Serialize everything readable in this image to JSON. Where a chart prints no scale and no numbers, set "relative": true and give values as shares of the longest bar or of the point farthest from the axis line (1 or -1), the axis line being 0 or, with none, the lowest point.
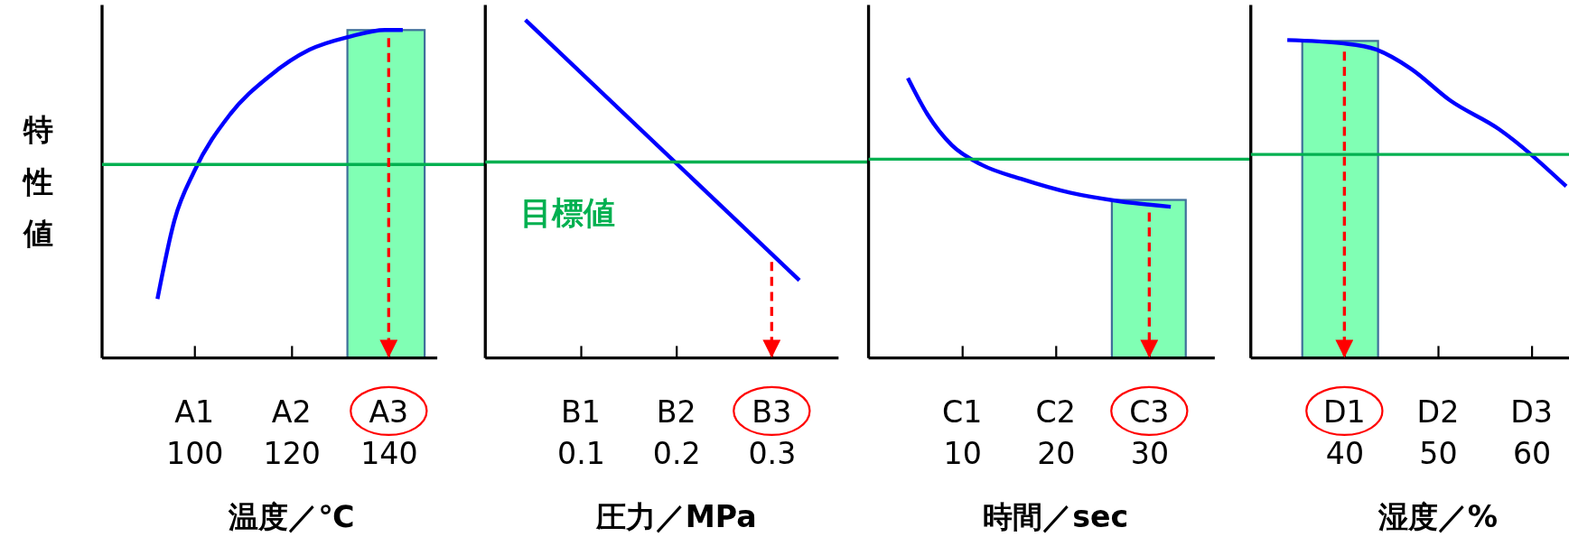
{
  "chart_data": [
    {
      "type": "line",
      "relative": true,
      "xlabel": "温度／℃",
      "ylabel": "特性値",
      "xlim": [
        81,
        150
      ],
      "xticks": [
        100,
        120,
        140
      ],
      "tick_labels": "x",
      "series": [
        {
          "color": "#0000ff",
          "x": [
            92.4,
            95.9,
            100,
            107.2,
            115.5,
            123.7,
            132,
            139.2,
            142.9
          ],
          "values": [
            0.18,
            0.42,
            0.57,
            0.74,
            0.86,
            0.94,
            0.98,
            1.0,
            1.0
          ]
        }
      ],
      "bands": [
        {
          "axis": "x",
          "from": 131.5,
          "to": 147.4,
          "color": "#80ffb4"
        }
      ],
      "ref_lines": [
        {
          "axis": "y",
          "value": 0.59,
          "label": null,
          "color": "#00b050"
        },
        {
          "axis": "x",
          "value": 140,
          "label": null,
          "color": "#ff0000",
          "line_style": "dashed"
        }
      ],
      "annotations": [
        "A1",
        "A2",
        "A3"
      ]
    },
    {
      "type": "line",
      "relative": true,
      "xlabel": "圧力／MPa",
      "xlim": [
        0,
        0.37
      ],
      "xticks": [
        0.1,
        0.2,
        0.3
      ],
      "tick_labels": "x",
      "series": [
        {
          "color": "#0000ff",
          "x": [
            0.042,
            0.329
          ],
          "values": [
            1.0,
            0.23
          ]
        }
      ],
      "ref_lines": [
        {
          "axis": "y",
          "value": 0.58,
          "label": "目標値",
          "color": "#00b050"
        },
        {
          "axis": "x",
          "value": 0.3,
          "label": null,
          "color": "#ff0000",
          "line_style": "dashed"
        }
      ],
      "annotations": [
        "B1",
        "B2",
        "B3"
      ]
    },
    {
      "type": "line",
      "relative": true,
      "xlabel": "時間／sec",
      "xlim": [
        0,
        37
      ],
      "xticks": [
        10,
        20,
        30
      ],
      "tick_labels": "x",
      "series": [
        {
          "color": "#0000ff",
          "x": [
            4.2,
            6.3,
            8.9,
            12.1,
            16.3,
            21.6,
            26.8,
            32.3
          ],
          "values": [
            1.0,
            0.87,
            0.76,
            0.69,
            0.64,
            0.59,
            0.56,
            0.54
          ]
        }
      ],
      "bands": [
        {
          "axis": "x",
          "from": 26,
          "to": 33.9,
          "color": "#80ffb4"
        }
      ],
      "ref_lines": [
        {
          "axis": "y",
          "value": 0.71,
          "label": null,
          "color": "#00b050"
        },
        {
          "axis": "x",
          "value": 30,
          "label": null,
          "color": "#ff0000",
          "line_style": "dashed"
        }
      ],
      "annotations": [
        "C1",
        "C2",
        "C3"
      ]
    },
    {
      "type": "line",
      "relative": true,
      "xlabel": "湿度／%",
      "xlim": [
        30,
        64
      ],
      "xticks": [
        40,
        50,
        60
      ],
      "tick_labels": "x",
      "series": [
        {
          "color": "#0000ff",
          "x": [
            33.9,
            39.7,
            43.4,
            47.1,
            51.3,
            56.5,
            63.7
          ],
          "values": [
            1.0,
            0.99,
            0.97,
            0.91,
            0.81,
            0.72,
            0.54
          ]
        }
      ],
      "bands": [
        {
          "axis": "x",
          "from": 35.5,
          "to": 43.6,
          "color": "#80ffb4"
        }
      ],
      "ref_lines": [
        {
          "axis": "y",
          "value": 0.64,
          "label": null,
          "color": "#00b050"
        },
        {
          "axis": "x",
          "value": 40,
          "label": null,
          "color": "#ff0000",
          "line_style": "dashed"
        }
      ],
      "annotations": [
        "D1",
        "D2",
        "D3"
      ]
    }
  ]
}
